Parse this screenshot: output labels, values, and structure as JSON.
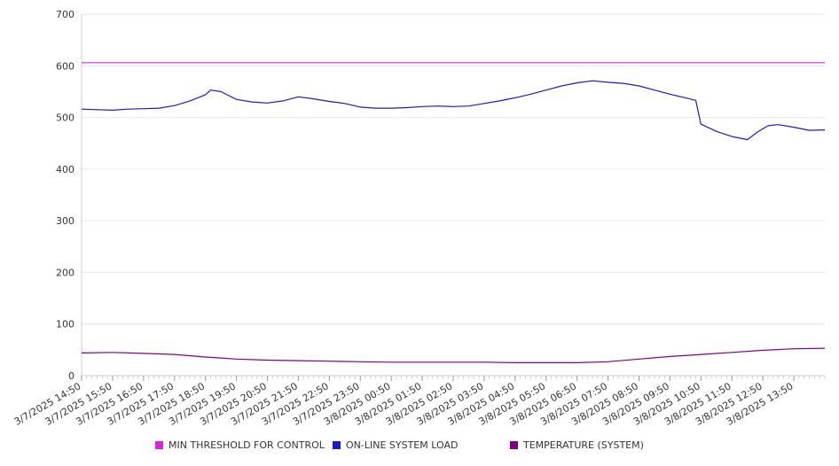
{
  "chart_data": {
    "type": "line",
    "ylim": [
      0,
      700
    ],
    "y_ticks": [
      0,
      100,
      200,
      300,
      400,
      500,
      600,
      700
    ],
    "grid": true,
    "legend_position": "bottom",
    "x_tick_labels": [
      "3/7/2025 14:50",
      "3/7/2025 15:50",
      "3/7/2025 16:50",
      "3/7/2025 17:50",
      "3/7/2025 18:50",
      "3/7/2025 19:50",
      "3/7/2025 20:50",
      "3/7/2025 21:50",
      "3/7/2025 22:50",
      "3/7/2025 23:50",
      "3/8/2025 00:50",
      "3/8/2025 01:50",
      "3/8/2025 02:50",
      "3/8/2025 03:50",
      "3/8/2025 04:50",
      "3/8/2025 05:50",
      "3/8/2025 06:50",
      "3/8/2025 07:50",
      "3/8/2025 08:50",
      "3/8/2025 09:50",
      "3/8/2025 10:50",
      "3/8/2025 11:50",
      "3/8/2025 12:50",
      "3/8/2025 13:50"
    ],
    "x_end": "3/8/2025 14:50",
    "series": [
      {
        "name": "MIN THRESHOLD FOR CONTROL",
        "color": "#e020e0",
        "x": [
          "3/7/2025 14:50",
          "3/8/2025 14:50"
        ],
        "values": [
          606,
          606
        ]
      },
      {
        "name": "ON-LINE SYSTEM LOAD",
        "color": "#1a1acc",
        "x": [
          "3/7/2025 14:50",
          "3/7/2025 15:20",
          "3/7/2025 15:50",
          "3/7/2025 16:20",
          "3/7/2025 16:50",
          "3/7/2025 17:20",
          "3/7/2025 17:50",
          "3/7/2025 18:20",
          "3/7/2025 18:50",
          "3/7/2025 19:00",
          "3/7/2025 19:20",
          "3/7/2025 19:50",
          "3/7/2025 20:20",
          "3/7/2025 20:50",
          "3/7/2025 21:20",
          "3/7/2025 21:50",
          "3/7/2025 22:20",
          "3/7/2025 22:50",
          "3/7/2025 23:20",
          "3/7/2025 23:50",
          "3/8/2025 00:20",
          "3/8/2025 00:50",
          "3/8/2025 01:20",
          "3/8/2025 01:50",
          "3/8/2025 02:20",
          "3/8/2025 02:50",
          "3/8/2025 03:20",
          "3/8/2025 03:50",
          "3/8/2025 04:20",
          "3/8/2025 04:50",
          "3/8/2025 05:20",
          "3/8/2025 05:50",
          "3/8/2025 06:20",
          "3/8/2025 06:50",
          "3/8/2025 07:20",
          "3/8/2025 07:50",
          "3/8/2025 08:20",
          "3/8/2025 08:50",
          "3/8/2025 09:20",
          "3/8/2025 09:50",
          "3/8/2025 10:20",
          "3/8/2025 10:40",
          "3/8/2025 10:50",
          "3/8/2025 11:20",
          "3/8/2025 11:50",
          "3/8/2025 12:20",
          "3/8/2025 12:40",
          "3/8/2025 13:00",
          "3/8/2025 13:20",
          "3/8/2025 13:50",
          "3/8/2025 14:20",
          "3/8/2025 14:50"
        ],
        "values": [
          516,
          515,
          514,
          516,
          517,
          518,
          523,
          532,
          544,
          553,
          550,
          535,
          530,
          528,
          532,
          540,
          536,
          531,
          527,
          520,
          518,
          518,
          519,
          521,
          522,
          521,
          522,
          527,
          532,
          538,
          545,
          553,
          561,
          567,
          571,
          568,
          566,
          561,
          553,
          545,
          538,
          533,
          487,
          473,
          463,
          457,
          472,
          484,
          486,
          481,
          475,
          476
        ]
      },
      {
        "name": "TEMPERATURE (SYSTEM)",
        "color": "#800080",
        "x": [
          "3/7/2025 14:50",
          "3/7/2025 15:50",
          "3/7/2025 16:50",
          "3/7/2025 17:50",
          "3/7/2025 18:50",
          "3/7/2025 19:50",
          "3/7/2025 20:50",
          "3/7/2025 21:50",
          "3/7/2025 22:50",
          "3/7/2025 23:50",
          "3/8/2025 00:50",
          "3/8/2025 01:50",
          "3/8/2025 02:50",
          "3/8/2025 03:50",
          "3/8/2025 04:50",
          "3/8/2025 05:50",
          "3/8/2025 06:50",
          "3/8/2025 07:50",
          "3/8/2025 08:50",
          "3/8/2025 09:50",
          "3/8/2025 10:50",
          "3/8/2025 11:50",
          "3/8/2025 12:50",
          "3/8/2025 13:50",
          "3/8/2025 14:50"
        ],
        "values": [
          44,
          45,
          43,
          41,
          36,
          32,
          30,
          29,
          28,
          27,
          26,
          26,
          26,
          26,
          25,
          25,
          25,
          27,
          32,
          37,
          41,
          45,
          49,
          52,
          53
        ]
      }
    ]
  }
}
